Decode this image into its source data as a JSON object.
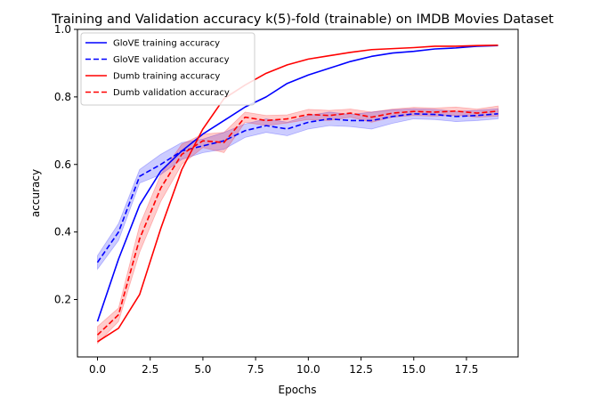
{
  "chart_data": {
    "type": "line",
    "title": "Training and Validation accuracy k(5)-fold (trainable) on IMDB Movies Dataset",
    "xlabel": "Epochs",
    "ylabel": "accuracy",
    "xlim": [
      -0.95,
      19.95
    ],
    "ylim": [
      0.03,
      1.0
    ],
    "xticks": [
      0.0,
      2.5,
      5.0,
      7.5,
      10.0,
      12.5,
      15.0,
      17.5
    ],
    "xtick_labels": [
      "0.0",
      "2.5",
      "5.0",
      "7.5",
      "10.0",
      "12.5",
      "15.0",
      "17.5"
    ],
    "yticks": [
      0.2,
      0.4,
      0.6,
      0.8,
      1.0
    ],
    "ytick_labels": [
      "0.2",
      "0.4",
      "0.6",
      "0.8",
      "1.0"
    ],
    "grid": false,
    "legend_position": "top-left",
    "x": [
      0,
      1,
      2,
      3,
      4,
      5,
      6,
      7,
      8,
      9,
      10,
      11,
      12,
      13,
      14,
      15,
      16,
      17,
      18,
      19
    ],
    "series": [
      {
        "name": "GloVE training accuracy",
        "color": "#0000ff",
        "style": "solid",
        "values": [
          0.135,
          0.32,
          0.48,
          0.58,
          0.64,
          0.69,
          0.73,
          0.77,
          0.8,
          0.84,
          0.865,
          0.885,
          0.905,
          0.92,
          0.93,
          0.935,
          0.942,
          0.945,
          0.95,
          0.952
        ],
        "band": null
      },
      {
        "name": "GloVE validation accuracy",
        "color": "#0000ff",
        "style": "dashed",
        "values": [
          0.31,
          0.4,
          0.565,
          0.6,
          0.64,
          0.655,
          0.67,
          0.7,
          0.715,
          0.705,
          0.725,
          0.735,
          0.73,
          0.73,
          0.742,
          0.75,
          0.748,
          0.742,
          0.745,
          0.75
        ],
        "band": [
          0.02,
          0.025,
          0.02,
          0.03,
          0.025,
          0.02,
          0.025,
          0.02,
          0.02,
          0.02,
          0.02,
          0.02,
          0.018,
          0.025,
          0.02,
          0.015,
          0.015,
          0.015,
          0.015,
          0.015
        ]
      },
      {
        "name": "Dumb training accuracy",
        "color": "#ff0000",
        "style": "solid",
        "values": [
          0.075,
          0.115,
          0.215,
          0.41,
          0.585,
          0.705,
          0.795,
          0.835,
          0.87,
          0.895,
          0.912,
          0.922,
          0.932,
          0.94,
          0.943,
          0.946,
          0.95,
          0.95,
          0.952,
          0.953
        ],
        "band": null
      },
      {
        "name": "Dumb validation accuracy",
        "color": "#ff0000",
        "style": "dashed",
        "values": [
          0.095,
          0.155,
          0.38,
          0.53,
          0.63,
          0.67,
          0.665,
          0.74,
          0.73,
          0.735,
          0.748,
          0.745,
          0.752,
          0.74,
          0.752,
          0.757,
          0.755,
          0.758,
          0.752,
          0.758
        ],
        "band": [
          0.025,
          0.02,
          0.04,
          0.04,
          0.03,
          0.02,
          0.03,
          0.015,
          0.015,
          0.012,
          0.015,
          0.015,
          0.012,
          0.015,
          0.012,
          0.012,
          0.012,
          0.012,
          0.012,
          0.015
        ]
      }
    ]
  }
}
